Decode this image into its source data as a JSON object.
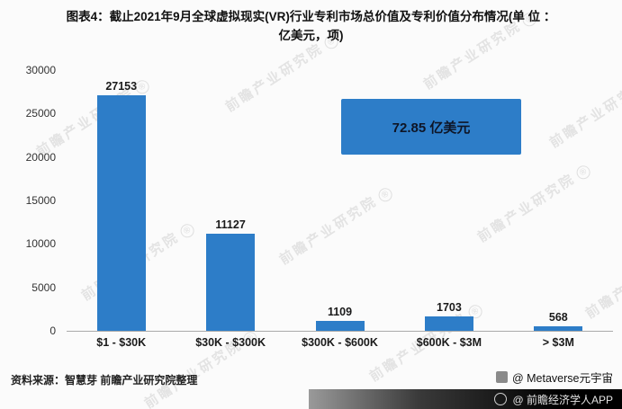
{
  "title": {
    "line1": "图表4：截止2021年9月全球虚拟现实(VR)行业专利市场总价值及专利价值分布情况(单 位 ：",
    "line2": "亿美元，项)"
  },
  "chart_data": {
    "type": "bar",
    "title": "截止2021年9月全球虚拟现实(VR)行业专利市场总价值及专利价值分布情况(单位：亿美元，项)",
    "categories": [
      "$1 - $30K",
      "$30K - $300K",
      "$300K - $600K",
      "$600K - $3M",
      "> $3M"
    ],
    "values": [
      27153,
      11127,
      1109,
      1703,
      568
    ],
    "xlabel": "",
    "ylabel": "",
    "ylim": [
      0,
      30000
    ],
    "yticks": [
      0,
      5000,
      10000,
      15000,
      20000,
      25000,
      30000
    ],
    "grid": false,
    "legend": false,
    "bar_color": "#2d7dc8",
    "annotation": "72.85 亿美元"
  },
  "callout": {
    "text": "72.85 亿美元",
    "bg": "#2d7dc8"
  },
  "footer": {
    "source": "资料来源：智慧芽 前瞻产业研究院整理",
    "credit": "@ Metaverse元宇宙",
    "app_badge": "@ 前瞻经济学人APP"
  },
  "watermark": {
    "text": "前瞻产业研究院",
    "registered": "®"
  }
}
